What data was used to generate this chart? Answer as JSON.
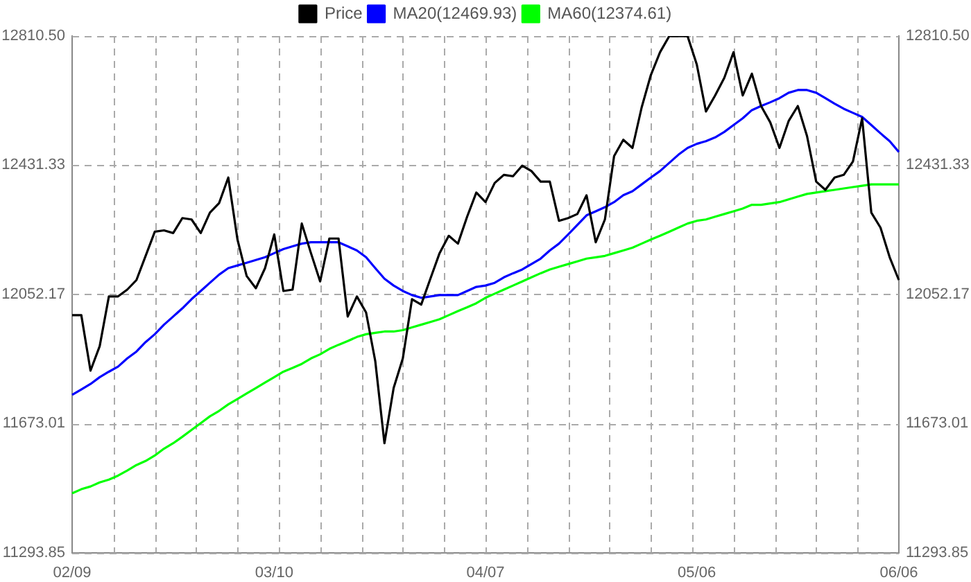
{
  "chart_data": {
    "type": "line",
    "categories": [
      "02/09",
      null,
      null,
      null,
      null,
      null,
      null,
      null,
      null,
      null,
      null,
      null,
      null,
      null,
      null,
      null,
      null,
      null,
      null,
      null,
      null,
      null,
      "03/10",
      null,
      null,
      null,
      null,
      null,
      null,
      null,
      null,
      null,
      null,
      null,
      null,
      null,
      null,
      null,
      null,
      null,
      null,
      null,
      null,
      null,
      null,
      "04/07",
      null,
      null,
      null,
      null,
      null,
      null,
      null,
      null,
      null,
      null,
      null,
      null,
      null,
      null,
      null,
      null,
      null,
      null,
      null,
      null,
      null,
      null,
      "05/06",
      null,
      null,
      null,
      null,
      null,
      null,
      null,
      null,
      null,
      null,
      null,
      null,
      null,
      null,
      null,
      null,
      null,
      null,
      null,
      null,
      null,
      "06/06"
    ],
    "series": [
      {
        "name": "Price",
        "color": "#000000",
        "values": [
          11991,
          11991,
          11828,
          11900,
          12046,
          12046,
          12066,
          12094,
          12165,
          12236,
          12240,
          12232,
          12276,
          12272,
          12232,
          12292,
          12320,
          12395,
          12213,
          12106,
          12070,
          12129,
          12228,
          12062,
          12066,
          12260,
          12173,
          12090,
          12216,
          12216,
          11987,
          12046,
          11999,
          11856,
          11615,
          11777,
          11864,
          12038,
          12022,
          12098,
          12173,
          12224,
          12201,
          12280,
          12351,
          12323,
          12379,
          12403,
          12399,
          12430,
          12414,
          12383,
          12383,
          12268,
          12276,
          12288,
          12343,
          12205,
          12272,
          12458,
          12506,
          12482,
          12601,
          12696,
          12763,
          12810,
          12810,
          12810,
          12727,
          12589,
          12636,
          12688,
          12763,
          12636,
          12700,
          12605,
          12557,
          12482,
          12561,
          12605,
          12517,
          12383,
          12359,
          12395,
          12403,
          12442,
          12569,
          12292,
          12248,
          12161,
          12094
        ]
      },
      {
        "name": "MA20(12469.93)",
        "color": "#0000ff",
        "values": [
          11757,
          11773,
          11789,
          11809,
          11825,
          11840,
          11864,
          11884,
          11912,
          11935,
          11963,
          11987,
          12011,
          12038,
          12062,
          12086,
          12110,
          12129,
          12137,
          12145,
          12153,
          12161,
          12173,
          12185,
          12193,
          12201,
          12205,
          12205,
          12205,
          12205,
          12193,
          12181,
          12161,
          12129,
          12098,
          12078,
          12062,
          12050,
          12042,
          12046,
          12050,
          12050,
          12050,
          12062,
          12074,
          12078,
          12086,
          12102,
          12114,
          12125,
          12141,
          12157,
          12181,
          12201,
          12228,
          12256,
          12284,
          12296,
          12308,
          12323,
          12343,
          12355,
          12375,
          12395,
          12414,
          12438,
          12462,
          12482,
          12494,
          12502,
          12513,
          12529,
          12549,
          12569,
          12593,
          12605,
          12616,
          12628,
          12644,
          12652,
          12652,
          12644,
          12628,
          12612,
          12597,
          12585,
          12573,
          12549,
          12525,
          12502,
          12470
        ]
      },
      {
        "name": "MA60(12374.61)",
        "color": "#00ff00",
        "values": [
          11468,
          11480,
          11488,
          11500,
          11508,
          11520,
          11535,
          11551,
          11563,
          11579,
          11599,
          11615,
          11634,
          11654,
          11674,
          11694,
          11710,
          11729,
          11745,
          11761,
          11777,
          11793,
          11809,
          11825,
          11836,
          11848,
          11864,
          11876,
          11892,
          11904,
          11915,
          11927,
          11935,
          11939,
          11943,
          11943,
          11947,
          11955,
          11963,
          11971,
          11979,
          11991,
          12003,
          12014,
          12026,
          12042,
          12054,
          12066,
          12078,
          12090,
          12102,
          12114,
          12125,
          12133,
          12141,
          12149,
          12157,
          12161,
          12165,
          12173,
          12181,
          12189,
          12201,
          12213,
          12224,
          12236,
          12248,
          12260,
          12268,
          12272,
          12280,
          12288,
          12296,
          12304,
          12315,
          12315,
          12319,
          12323,
          12331,
          12339,
          12347,
          12351,
          12355,
          12359,
          12363,
          12367,
          12371,
          12375,
          12375,
          12375,
          12375
        ]
      }
    ],
    "ylim": [
      11293.85,
      12810.5
    ],
    "yticks": [
      11293.85,
      11673.01,
      12052.17,
      12431.33,
      {
        "value": 12810.5,
        "label": "12810.50"
      }
    ],
    "y2lim": [
      11293.85,
      12810.5
    ],
    "y2ticks": [
      11293.85,
      11673.01,
      12052.17,
      12431.33,
      {
        "value": 12810.5,
        "label": "12810.50"
      }
    ],
    "grid": true,
    "legend": "top",
    "marker": "none",
    "line_style": "solid"
  }
}
